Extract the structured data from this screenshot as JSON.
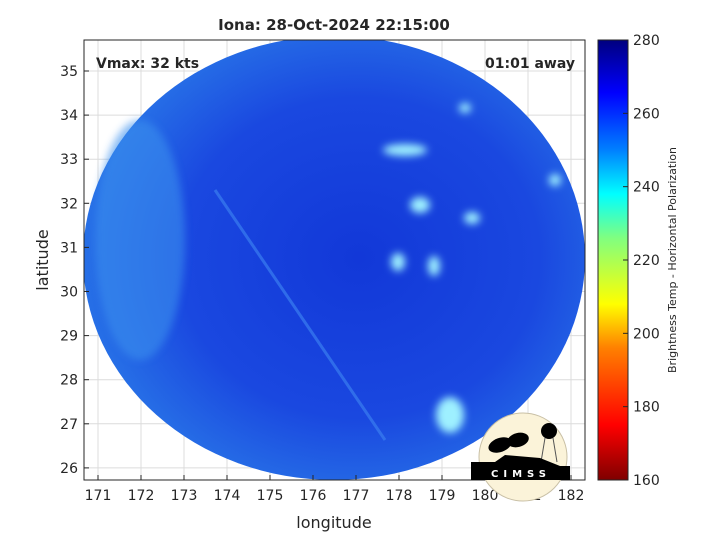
{
  "title": "Iona: 28-Oct-2024 22:15:00",
  "vmax_label": "Vmax: 32 kts",
  "away_label": "01:01 away",
  "xlabel": "longitude",
  "ylabel": "latitude",
  "xticks": [
    "171",
    "172",
    "173",
    "174",
    "175",
    "176",
    "177",
    "178",
    "179",
    "180",
    "181",
    "182"
  ],
  "yticks": [
    "26",
    "27",
    "28",
    "29",
    "30",
    "31",
    "32",
    "33",
    "34",
    "35"
  ],
  "colorbar": {
    "label": "Brightness Temp - Horizontal Polarization",
    "ticks": [
      "160",
      "180",
      "200",
      "220",
      "240",
      "260",
      "280"
    ],
    "range": [
      160,
      280
    ],
    "colors": [
      "#7f0000",
      "#ff0000",
      "#ff8000",
      "#ffff00",
      "#80ff80",
      "#00ffff",
      "#0080ff",
      "#0000ff",
      "#00007f"
    ]
  },
  "logo": {
    "text": "CIMSS"
  },
  "colors": {
    "field": "#1a4fe0",
    "field_light": "#2e8af0"
  }
}
